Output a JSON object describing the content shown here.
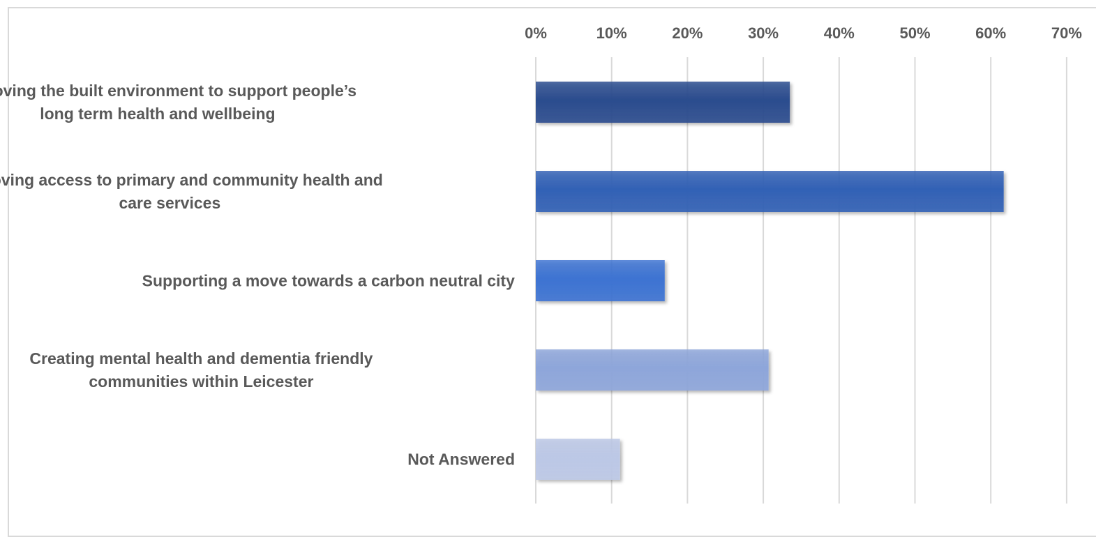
{
  "chart_data": {
    "type": "bar",
    "orientation": "horizontal",
    "x_axis_position": "top",
    "title": "",
    "xlabel": "",
    "ylabel": "",
    "xlim": [
      0,
      70
    ],
    "x_ticks": [
      "0%",
      "10%",
      "20%",
      "30%",
      "40%",
      "50%",
      "60%",
      "70%"
    ],
    "x_tick_values": [
      0,
      10,
      20,
      30,
      40,
      50,
      60,
      70
    ],
    "grid": true,
    "legend": "none",
    "categories": [
      [
        "Improving the built environment to support people’s",
        "long term health and wellbeing"
      ],
      [
        "Improving access to primary and community health and",
        "care services"
      ],
      [
        "Supporting a move towards a carbon neutral city"
      ],
      [
        "Creating mental health and dementia friendly",
        "communities within Leicester"
      ],
      [
        "Not Answered"
      ]
    ],
    "values": [
      33.5,
      61.7,
      17,
      30.7,
      11.1
    ],
    "bar_colors": [
      "#2b4c8e",
      "#3261b5",
      "#3d73d2",
      "#8ea6da",
      "#bcc8e6"
    ],
    "grid_color": "#d9d9d9",
    "text_color": "#595959"
  }
}
